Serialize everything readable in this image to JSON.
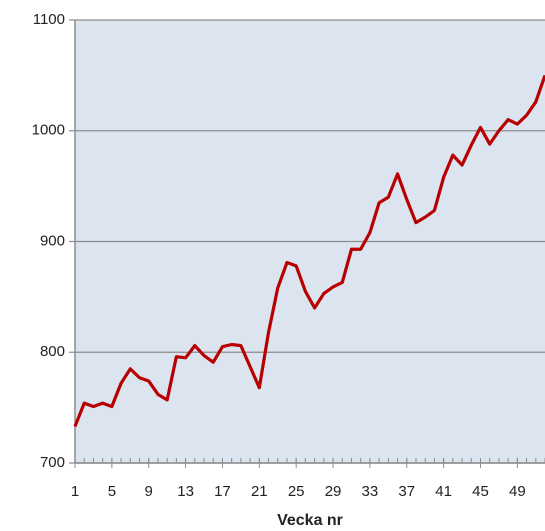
{
  "chart_data": {
    "type": "line",
    "x_label": "Vecka nr",
    "x": [
      1,
      2,
      3,
      4,
      5,
      6,
      7,
      8,
      9,
      10,
      11,
      12,
      13,
      14,
      15,
      16,
      17,
      18,
      19,
      20,
      21,
      22,
      23,
      24,
      25,
      26,
      27,
      28,
      29,
      30,
      31,
      32,
      33,
      34,
      35,
      36,
      37,
      38,
      39,
      40,
      41,
      42,
      43,
      44,
      45,
      46,
      47,
      48,
      49,
      50,
      51,
      52
    ],
    "values": [
      733,
      754,
      751,
      754,
      751,
      772,
      785,
      777,
      774,
      762,
      757,
      796,
      795,
      806,
      797,
      791,
      805,
      807,
      806,
      787,
      768,
      818,
      858,
      881,
      878,
      855,
      840,
      853,
      859,
      863,
      893,
      893,
      908,
      935,
      940,
      961,
      938,
      917,
      922,
      928,
      958,
      978,
      969,
      987,
      1003,
      988,
      1000,
      1010,
      1006,
      1014,
      1026,
      1050
    ],
    "color": "#b80000",
    "xlim": [
      1,
      52
    ],
    "xticks": [
      1,
      5,
      9,
      13,
      17,
      21,
      25,
      29,
      33,
      37,
      41,
      45,
      49
    ],
    "ylim": [
      700,
      1100
    ],
    "yticks": [
      700,
      800,
      900,
      1000,
      1100
    ],
    "grid": true
  }
}
